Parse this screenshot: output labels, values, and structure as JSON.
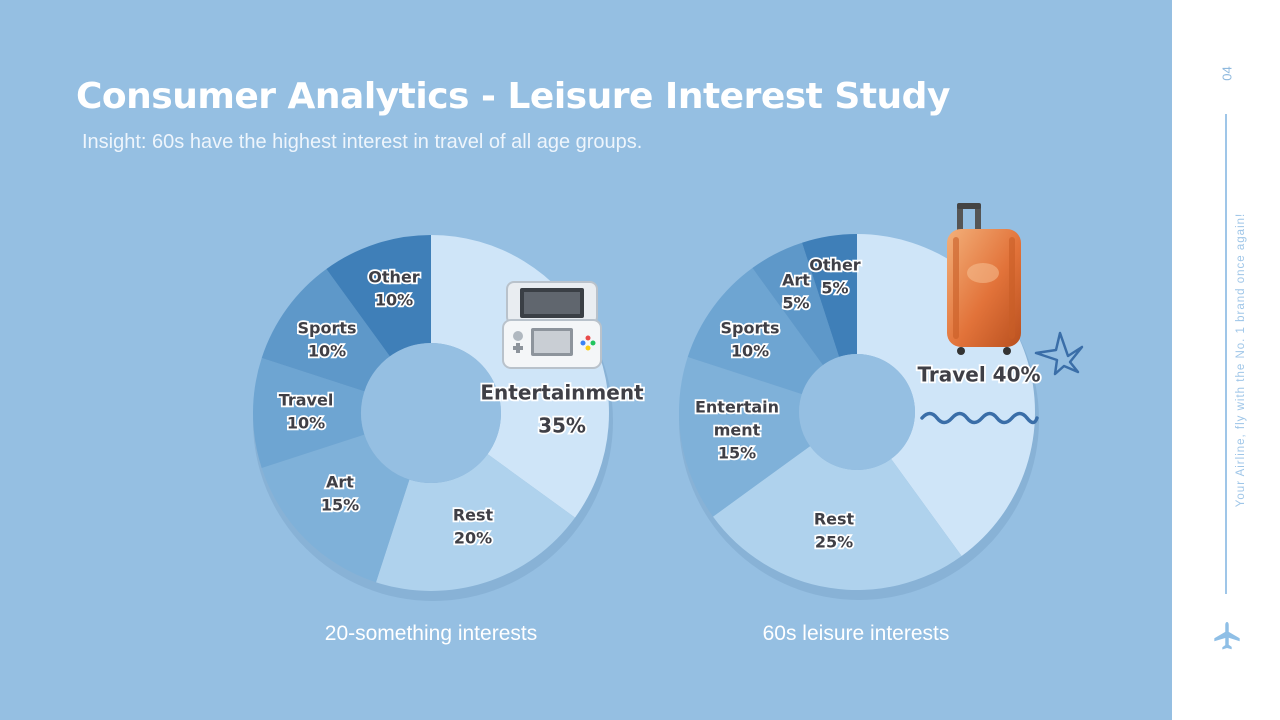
{
  "slide": {
    "title": "Consumer Analytics - Leisure Interest Study",
    "subtitle": "Insight: 60s have the highest interest in travel of all age groups.",
    "background": "#95bfe2"
  },
  "sidebar": {
    "page_number": "04",
    "tagline": "Your Airline, fly with the No. 1 brand once again!",
    "icon": "airplane-icon"
  },
  "illustrations": [
    "handheld-game-console-icon",
    "suitcase-icon",
    "star-icon",
    "wavy-line-icon"
  ],
  "chart_data": [
    {
      "type": "pie",
      "style": "donut",
      "caption": "20-something interests",
      "slices": [
        {
          "label": "Entertainment",
          "value": 35,
          "display": "35%",
          "color": "#cfe5f8"
        },
        {
          "label": "Rest",
          "value": 20,
          "display": "20%",
          "color": "#afd2ed"
        },
        {
          "label": "Art",
          "value": 15,
          "display": "15%",
          "color": "#7fb1d9"
        },
        {
          "label": "Travel",
          "value": 10,
          "display": "10%",
          "color": "#6ea5d2"
        },
        {
          "label": "Sports",
          "value": 10,
          "display": "10%",
          "color": "#5e98c9"
        },
        {
          "label": "Other",
          "value": 10,
          "display": "10%",
          "color": "#3f7fb8"
        }
      ]
    },
    {
      "type": "pie",
      "style": "donut",
      "caption": "60s leisure interests",
      "slices": [
        {
          "label": "Travel",
          "value": 40,
          "display": "40%",
          "color": "#cfe5f8"
        },
        {
          "label": "Rest",
          "value": 25,
          "display": "25%",
          "color": "#afd2ed"
        },
        {
          "label": "Entertainment",
          "value": 15,
          "display": "15%",
          "color": "#7fb1d9"
        },
        {
          "label": "Sports",
          "value": 10,
          "display": "10%",
          "color": "#6ea5d2"
        },
        {
          "label": "Art",
          "value": 5,
          "display": "5%",
          "color": "#5e98c9"
        },
        {
          "label": "Other",
          "value": 5,
          "display": "5%",
          "color": "#3f7fb8"
        }
      ]
    }
  ]
}
